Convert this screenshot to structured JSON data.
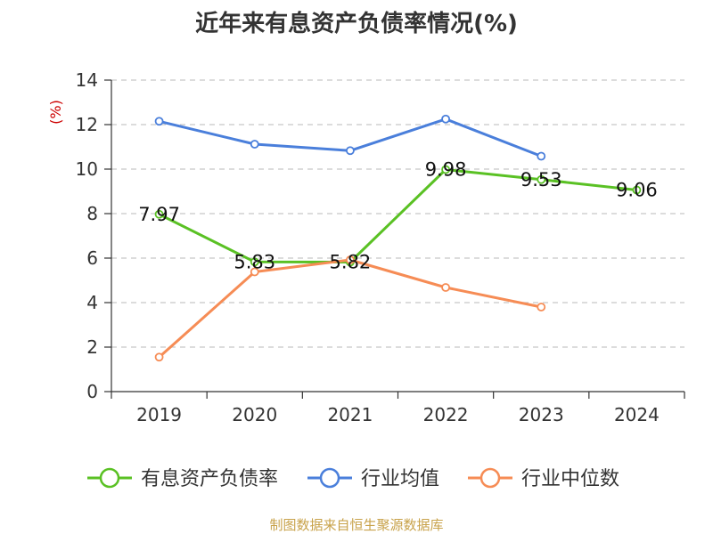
{
  "chart_data": {
    "type": "line",
    "title": "近年来有息资产负债率情况(%)",
    "ylabel": "(%)",
    "xlabel": "",
    "categories": [
      "2019",
      "2020",
      "2021",
      "2022",
      "2023",
      "2024"
    ],
    "ylim": [
      0,
      14
    ],
    "yticks": [
      "0",
      "2",
      "4",
      "6",
      "8",
      "10",
      "12",
      "14"
    ],
    "ytick_values": [
      0,
      2,
      4,
      6,
      8,
      10,
      12,
      14
    ],
    "grid": true,
    "legend_position": "bottom",
    "series": [
      {
        "name": "有息资产负债率",
        "color": "#5ac124",
        "values": [
          7.97,
          5.83,
          5.82,
          9.98,
          9.53,
          9.06
        ],
        "labels": [
          "7.97",
          "5.83",
          "5.82",
          "9.98",
          "9.53",
          "9.06"
        ],
        "show_labels": true
      },
      {
        "name": "行业均值",
        "color": "#4a7fdb",
        "values": [
          12.15,
          11.12,
          10.83,
          12.25,
          10.58,
          null
        ],
        "show_labels": false
      },
      {
        "name": "行业中位数",
        "color": "#f68c55",
        "values": [
          1.55,
          5.38,
          5.92,
          4.68,
          3.8,
          null
        ],
        "show_labels": false
      }
    ],
    "source": "制图数据来自恒生聚源数据库"
  }
}
